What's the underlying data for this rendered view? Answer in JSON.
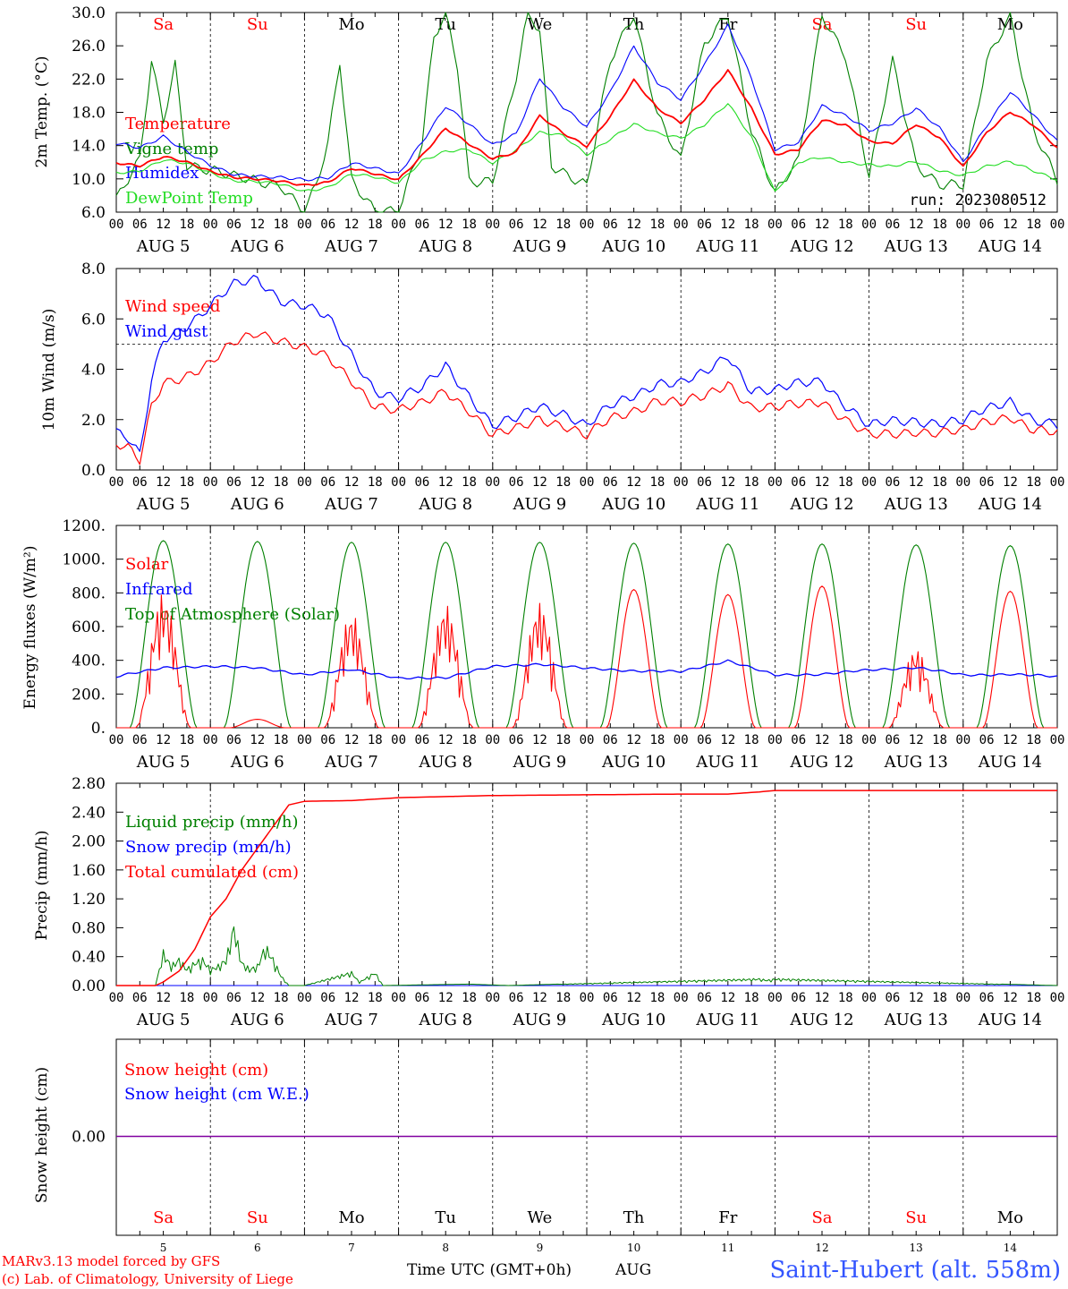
{
  "days": [
    "Sa",
    "Su",
    "Mo",
    "Tu",
    "We",
    "Th",
    "Fr",
    "Sa",
    "Su",
    "Mo"
  ],
  "weekend_flags": [
    true,
    true,
    false,
    false,
    false,
    false,
    false,
    true,
    true,
    false
  ],
  "date_labels": [
    "AUG  5",
    "AUG  6",
    "AUG  7",
    "AUG  8",
    "AUG  9",
    "AUG 10",
    "AUG 11",
    "AUG 12",
    "AUG 13",
    "AUG 14"
  ],
  "bottom_day_numbers": [
    "5",
    "6",
    "7",
    "8",
    "9",
    "10",
    "11",
    "12",
    "13",
    "14"
  ],
  "hour_ticks": [
    "00",
    "06",
    "12",
    "18"
  ],
  "footer": {
    "credit_line1": "MARv3.13 model forced by GFS",
    "credit_line2": "(c) Lab. of Climatology, University of Liege",
    "xlabel": "Time UTC (GMT+0h)",
    "month": "AUG",
    "station": "Saint-Hubert (alt. 558m)"
  },
  "colors": {
    "red": "#ff0000",
    "green": "#008000",
    "blue": "#0000ff",
    "lightgreen": "#22dd22",
    "purple": "#8000a0",
    "station": "#3355ff"
  },
  "chart_data": [
    {
      "type": "line",
      "ylabel": "2m Temp. (°C)",
      "ylim": [
        6,
        30
      ],
      "yticks": [
        "30.0",
        "26.0",
        "22.0",
        "18.0",
        "14.0",
        "10.0",
        "6.0"
      ],
      "run_label": "run: 2023080512",
      "x_unit": "hours since AUG 5 00 UTC",
      "series": [
        {
          "name": "Temperature",
          "color": "#ff0000",
          "x": [
            0,
            6,
            12,
            18,
            24,
            30,
            36,
            42,
            48,
            54,
            60,
            66,
            72,
            78,
            84,
            90,
            96,
            102,
            108,
            114,
            120,
            126,
            132,
            138,
            144,
            150,
            156,
            162,
            168,
            174,
            180,
            186,
            192,
            198,
            204,
            210,
            216,
            222,
            228,
            234,
            240
          ],
          "values": [
            12,
            11.6,
            12.6,
            12,
            11,
            10.2,
            9.9,
            9.7,
            9.3,
            9.6,
            11.2,
            10.6,
            10,
            12.8,
            16,
            14.2,
            12.5,
            13.2,
            17.5,
            15.5,
            14,
            17.5,
            21.8,
            18.5,
            16.8,
            19.5,
            23,
            18.5,
            13,
            13.5,
            17,
            16.5,
            14.6,
            14.2,
            16.5,
            15,
            11.5,
            15.5,
            18,
            16.5,
            13.8
          ]
        },
        {
          "name": "Vigne temp",
          "color": "#008000",
          "x": [
            0,
            6,
            9,
            12,
            15,
            18,
            24,
            30,
            36,
            42,
            48,
            51,
            54,
            57,
            60,
            66,
            72,
            78,
            81,
            84,
            87,
            90,
            96,
            102,
            105,
            108,
            111,
            114,
            120,
            126,
            132,
            138,
            144,
            150,
            156,
            162,
            168,
            174,
            180,
            186,
            192,
            198,
            204,
            210,
            216,
            222,
            228,
            234,
            240
          ],
          "values": [
            7.5,
            12,
            24,
            17,
            24,
            12,
            11,
            10,
            9.8,
            9.5,
            6,
            9,
            14,
            24,
            10,
            6.5,
            6,
            14,
            27,
            30,
            24,
            10,
            9.5,
            22,
            30,
            28,
            12,
            11,
            9,
            24,
            30,
            18,
            12,
            26,
            30,
            16,
            8,
            12,
            30,
            25,
            10,
            24,
            12,
            9.5,
            9,
            24,
            30,
            16,
            9.5
          ]
        },
        {
          "name": "Humidex",
          "color": "#0000ff",
          "x": [
            0,
            6,
            12,
            18,
            24,
            30,
            36,
            42,
            48,
            54,
            60,
            66,
            72,
            78,
            84,
            90,
            96,
            102,
            108,
            114,
            120,
            126,
            132,
            138,
            144,
            150,
            156,
            162,
            168,
            174,
            180,
            186,
            192,
            198,
            204,
            210,
            216,
            222,
            228,
            234,
            240
          ],
          "values": [
            14.2,
            13.8,
            15.2,
            13.2,
            11.5,
            10.6,
            10.4,
            10.1,
            9.8,
            10.2,
            12,
            11.2,
            10.5,
            14.5,
            18.8,
            16.5,
            14,
            15.5,
            22.2,
            18.5,
            16.2,
            20.5,
            26,
            21.5,
            19.5,
            23.8,
            28.5,
            22,
            13.5,
            14.5,
            18.8,
            17.5,
            15.8,
            16.8,
            18.5,
            16,
            12,
            16.5,
            20.5,
            17.5,
            14.5
          ]
        },
        {
          "name": "DewPoint Temp",
          "color": "#22dd22",
          "x": [
            0,
            6,
            12,
            18,
            24,
            30,
            36,
            42,
            48,
            54,
            60,
            66,
            72,
            78,
            84,
            90,
            96,
            102,
            108,
            114,
            120,
            126,
            132,
            138,
            144,
            150,
            156,
            162,
            168,
            174,
            180,
            186,
            192,
            198,
            204,
            210,
            216,
            222,
            228,
            234,
            240
          ],
          "values": [
            10.8,
            11,
            12.2,
            11.8,
            10.8,
            9.8,
            9.6,
            9.3,
            8.6,
            9,
            10.5,
            10.2,
            9.6,
            12.2,
            13.2,
            13.5,
            12,
            13.5,
            15.5,
            15.2,
            13,
            14.8,
            16.5,
            15.5,
            15,
            16.5,
            19,
            15,
            8.5,
            12,
            12.5,
            12,
            11.8,
            11.5,
            12,
            11,
            10.5,
            11.5,
            12,
            11,
            10
          ]
        }
      ]
    },
    {
      "type": "line",
      "ylabel": "10m Wind (m/s)",
      "ylim": [
        0,
        8
      ],
      "yticks": [
        "8.0",
        "6.0",
        "4.0",
        "2.0",
        "0.0"
      ],
      "reference_line": 5,
      "series": [
        {
          "name": "Wind speed",
          "color": "#ff0000",
          "x": [
            0,
            3,
            6,
            9,
            12,
            18,
            24,
            30,
            36,
            42,
            48,
            54,
            60,
            66,
            72,
            78,
            84,
            90,
            96,
            102,
            108,
            114,
            120,
            126,
            132,
            138,
            144,
            150,
            156,
            162,
            168,
            174,
            180,
            186,
            192,
            198,
            204,
            210,
            216,
            222,
            228,
            234,
            240
          ],
          "values": [
            1,
            0.8,
            0.3,
            2.5,
            3.5,
            3.8,
            4.2,
            5,
            5.5,
            5.2,
            4.8,
            4.4,
            3.6,
            2.6,
            2.3,
            2.6,
            3.2,
            2.4,
            1.3,
            1.6,
            2.1,
            1.8,
            1.3,
            2,
            2.4,
            2.8,
            2.6,
            2.9,
            3.5,
            2.5,
            2.4,
            2.6,
            2.8,
            2,
            1.3,
            1.4,
            1.6,
            1.5,
            1.5,
            1.9,
            2.2,
            1.6,
            1.4
          ]
        },
        {
          "name": "Wind gust",
          "color": "#0000ff",
          "x": [
            0,
            3,
            6,
            9,
            12,
            18,
            24,
            30,
            36,
            42,
            48,
            54,
            60,
            66,
            72,
            78,
            84,
            90,
            96,
            102,
            108,
            114,
            120,
            126,
            132,
            138,
            144,
            150,
            156,
            162,
            168,
            174,
            180,
            186,
            192,
            198,
            204,
            210,
            216,
            222,
            228,
            234,
            240
          ],
          "values": [
            1.5,
            1.2,
            0.5,
            3.5,
            5.2,
            5.8,
            6.5,
            7.3,
            7.6,
            6.8,
            6.5,
            6,
            4.6,
            3.2,
            2.8,
            3.2,
            4.2,
            3,
            1.7,
            2,
            2.6,
            2.3,
            1.7,
            2.5,
            3,
            3.5,
            3.4,
            3.8,
            4.6,
            3.2,
            3.1,
            3.4,
            3.6,
            2.6,
            1.7,
            1.9,
            2,
            1.9,
            1.9,
            2.4,
            2.8,
            2,
            1.7
          ]
        }
      ]
    },
    {
      "type": "line",
      "ylabel": "Energy fluxes (W/m²)",
      "ylim": [
        0,
        1200
      ],
      "yticks": [
        "1200.",
        "1000.",
        "800.",
        "600.",
        "400.",
        "200.",
        "0."
      ],
      "series": [
        {
          "name": "Solar",
          "color": "#ff0000",
          "daily_peak": [
            800,
            50,
            680,
            730,
            740,
            820,
            790,
            840,
            470,
            810
          ]
        },
        {
          "name": "Infrared",
          "color": "#0000ff",
          "x": [
            0,
            12,
            24,
            36,
            48,
            60,
            72,
            84,
            96,
            108,
            120,
            132,
            144,
            156,
            168,
            180,
            192,
            204,
            216,
            228,
            240
          ],
          "values": [
            300,
            360,
            360,
            360,
            310,
            350,
            290,
            300,
            360,
            380,
            350,
            340,
            330,
            400,
            310,
            320,
            340,
            360,
            310,
            320,
            300
          ]
        },
        {
          "name": "Top of Atmosphere (Solar)",
          "color": "#008000",
          "daily_peak": [
            1110,
            1105,
            1100,
            1100,
            1100,
            1095,
            1090,
            1090,
            1085,
            1080
          ]
        }
      ]
    },
    {
      "type": "line",
      "ylabel": "Precip (mm/h)",
      "ylim": [
        0,
        2.8
      ],
      "yticks": [
        "2.80",
        "2.40",
        "2.00",
        "1.60",
        "1.20",
        "0.80",
        "0.40",
        "0.00"
      ],
      "series": [
        {
          "name": "Liquid precip (mm/h)",
          "color": "#008000",
          "x": [
            0,
            10,
            12,
            14,
            16,
            18,
            20,
            22,
            24,
            26,
            28,
            30,
            32,
            34,
            36,
            38,
            40,
            42,
            44,
            48,
            60,
            62,
            66,
            68,
            90,
            100,
            164,
            166,
            168,
            240
          ],
          "values": [
            0,
            0,
            0.5,
            0.3,
            0.4,
            0.25,
            0.35,
            0.4,
            0.25,
            0.3,
            0.4,
            0.9,
            0.35,
            0.25,
            0.3,
            0.6,
            0.4,
            0.15,
            0,
            0,
            0.2,
            0.05,
            0.2,
            0,
            0.02,
            0,
            0.1,
            0.08,
            0.1,
            0
          ]
        },
        {
          "name": "Snow precip (mm/h)",
          "color": "#0000ff",
          "x": [
            0,
            240
          ],
          "values": [
            0,
            0
          ]
        },
        {
          "name": "Total cumulated (cm)",
          "color": "#ff0000",
          "x": [
            0,
            10,
            12,
            16,
            20,
            24,
            28,
            32,
            36,
            40,
            44,
            48,
            60,
            72,
            96,
            120,
            144,
            156,
            164,
            168,
            240
          ],
          "values": [
            0,
            0,
            0.05,
            0.2,
            0.5,
            0.95,
            1.2,
            1.6,
            1.9,
            2.2,
            2.5,
            2.55,
            2.56,
            2.6,
            2.63,
            2.64,
            2.65,
            2.65,
            2.68,
            2.7,
            2.7
          ]
        }
      ]
    },
    {
      "type": "line",
      "ylabel": "Snow height (cm)",
      "ytick": "0.00",
      "series": [
        {
          "name": "Snow height (cm)",
          "color": "#ff0000",
          "x": [
            0,
            240
          ],
          "values": [
            0,
            0
          ]
        },
        {
          "name": "Snow height (cm W.E.)",
          "color": "#0000ff",
          "x": [
            0,
            240
          ],
          "values": [
            0,
            0
          ]
        }
      ]
    }
  ]
}
